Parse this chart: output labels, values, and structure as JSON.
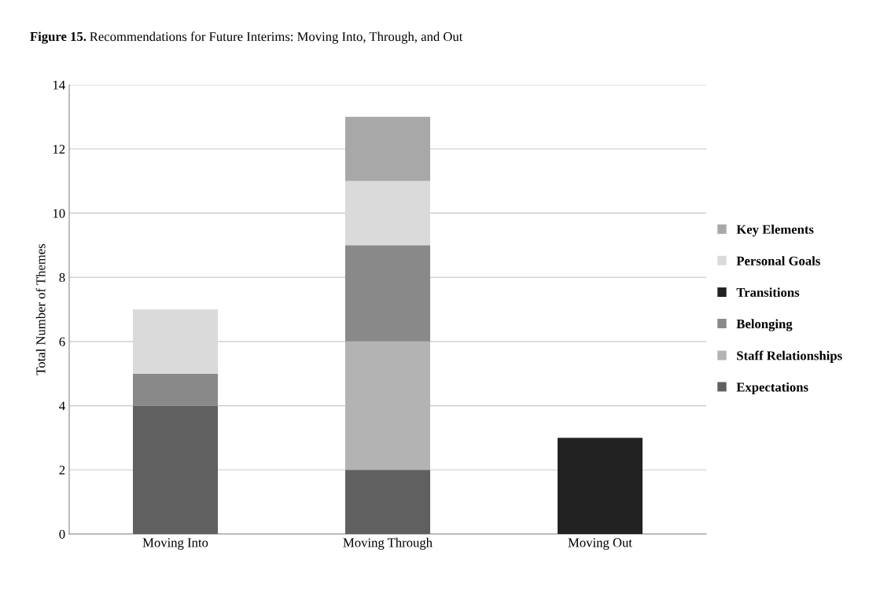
{
  "chart_data": {
    "type": "bar",
    "stacked": true,
    "title": "Figure 15. Recommendations for Future Interims: Moving Into, Through, and Out",
    "ylabel": "Total Number of Themes",
    "categories": [
      "Moving Into",
      "Moving Through",
      "Moving Out"
    ],
    "series": [
      {
        "name": "Expectations",
        "color": "#606060",
        "values": [
          4,
          2,
          0
        ]
      },
      {
        "name": "Staff Relationships",
        "color": "#b3b3b3",
        "values": [
          0,
          4,
          0
        ]
      },
      {
        "name": "Belonging",
        "color": "#898989",
        "values": [
          1,
          3,
          0
        ]
      },
      {
        "name": "Transitions",
        "color": "#222222",
        "values": [
          0,
          0,
          3
        ]
      },
      {
        "name": "Personal Goals",
        "color": "#dadada",
        "values": [
          2,
          2,
          0
        ]
      },
      {
        "name": "Key Elements",
        "color": "#a8a8a8",
        "values": [
          0,
          2,
          0
        ]
      }
    ],
    "ylim": [
      0,
      14
    ],
    "yticks": [
      0,
      2,
      4,
      6,
      8,
      10,
      12,
      14
    ],
    "grid": "y",
    "legend": "right"
  }
}
